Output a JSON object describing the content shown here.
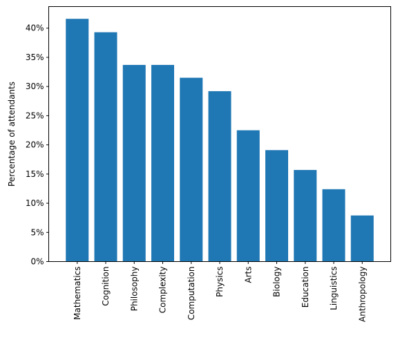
{
  "chart_data": {
    "type": "bar",
    "title": "",
    "xlabel": "",
    "ylabel": "Percentage of attendants",
    "categories": [
      "Mathematics",
      "Cognition",
      "Philosophy",
      "Complexity",
      "Computation",
      "Physics",
      "Arts",
      "Biology",
      "Education",
      "Linguistics",
      "Anthropology"
    ],
    "values": [
      41.6,
      39.3,
      33.7,
      33.7,
      31.5,
      29.2,
      22.5,
      19.1,
      15.7,
      12.4,
      7.9
    ],
    "ylim": [
      0,
      43.7
    ],
    "yticks": [
      0,
      5,
      10,
      15,
      20,
      25,
      30,
      35,
      40
    ],
    "ytick_labels": [
      "0%",
      "5%",
      "10%",
      "15%",
      "20%",
      "25%",
      "30%",
      "35%",
      "40%"
    ],
    "grid": false,
    "legend": "none",
    "colors": {
      "bar": "#1f77b4",
      "axis": "#000000"
    }
  }
}
